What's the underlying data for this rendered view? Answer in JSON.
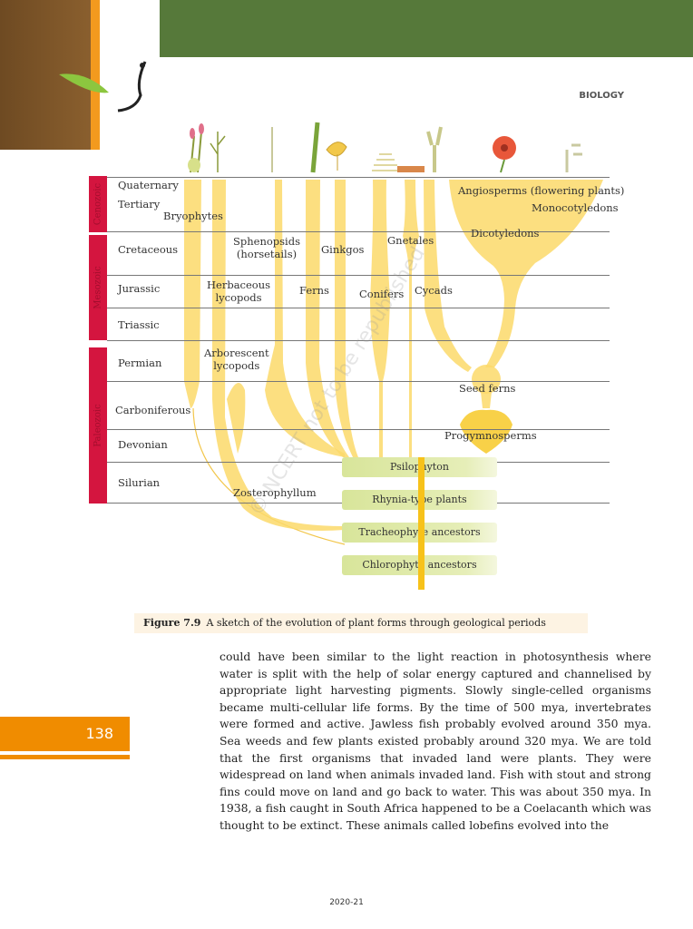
{
  "header": {
    "subject": "BIOLOGY"
  },
  "figure": {
    "eras": [
      {
        "label": "Cenozoic"
      },
      {
        "label": "Mesozoic"
      },
      {
        "label": "Paleozoic"
      }
    ],
    "periods": [
      "Quaternary",
      "Tertiary",
      "Cretaceous",
      "Jurassic",
      "Triassic",
      "Permian",
      "Carboniferous",
      "Devonian",
      "Silurian"
    ],
    "lineages": {
      "bryophytes": "Bryophytes",
      "sphenopsids": "Sphenopsids",
      "horsetails": "(horsetails)",
      "ginkgos": "Ginkgos",
      "gnetales": "Gnetales",
      "dicotyledons": "Dicotyledons",
      "angiosperms": "Angiosperms (flowering plants)",
      "monocotyledons": "Monocotyledons",
      "herbaceous": "Herbaceous",
      "herbaceous2": "lycopods",
      "ferns": "Ferns",
      "conifers": "Conifers",
      "cycads": "Cycads",
      "arborescent": "Arborescent",
      "arborescent2": "lycopods",
      "seed_ferns": "Seed ferns",
      "progymnosperms": "Progymnosperms",
      "zosterophyllum": "Zosterophyllum"
    },
    "ancestors": [
      "Psilophyton",
      "Rhynia-type plants",
      "Tracheophyte ancestors",
      "Chlorophyte ancestors"
    ],
    "watermark": "© NCERT not to be republished",
    "caption_label": "Figure 7.9",
    "caption_text": "A sketch of the evolution of plant forms through geological periods"
  },
  "body": "could have been similar to the light reaction in photosynthesis where water is split with the help of solar energy captured and channelised by appropriate light harvesting pigments. Slowly single-celled organisms became multi-cellular life forms. By the time of 500 mya, invertebrates were formed and active. Jawless fish probably evolved around 350 mya. Sea weeds and few plants existed probably around 320 mya.  We are told that the first organisms that invaded land were plants. They were widespread on land when animals invaded land. Fish with stout and strong fins could move on land and go back to water. This was about 350 mya. In 1938, a fish caught in South Africa happened to be a Coelacanth which was thought to be extinct. These animals called lobefins evolved into the",
  "page_number": "138",
  "footer": "2020-21",
  "colors": {
    "green": "#56793a",
    "orange": "#f08c00",
    "era": "#d4153f",
    "lineage": "#fbd96a"
  }
}
